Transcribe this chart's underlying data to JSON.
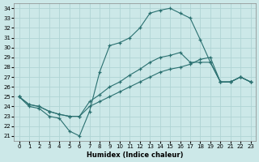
{
  "xlabel": "Humidex (Indice chaleur)",
  "xlim": [
    -0.5,
    23.5
  ],
  "ylim": [
    20.5,
    34.5
  ],
  "xticks": [
    0,
    1,
    2,
    3,
    4,
    5,
    6,
    7,
    8,
    9,
    10,
    11,
    12,
    13,
    14,
    15,
    16,
    17,
    18,
    19,
    20,
    21,
    22,
    23
  ],
  "yticks": [
    21,
    22,
    23,
    24,
    25,
    26,
    27,
    28,
    29,
    30,
    31,
    32,
    33,
    34
  ],
  "line_color": "#2a7070",
  "bg_color": "#cce8e8",
  "grid_color": "#b0d4d4",
  "curve1_x": [
    0,
    1,
    2,
    3,
    4,
    5,
    6,
    7,
    8,
    9,
    10,
    11,
    12,
    13,
    14,
    15,
    16,
    17,
    18,
    19,
    20,
    21,
    22,
    23
  ],
  "curve1_y": [
    25.0,
    24.0,
    23.8,
    23.0,
    22.8,
    21.5,
    21.0,
    23.5,
    27.5,
    30.2,
    30.5,
    31.0,
    32.0,
    33.5,
    33.8,
    34.0,
    33.5,
    33.0,
    30.8,
    28.5,
    26.5,
    26.5,
    27.0,
    26.5
  ],
  "curve2_x": [
    0,
    1,
    2,
    3,
    4,
    5,
    6,
    7,
    8,
    9,
    10,
    11,
    12,
    13,
    14,
    15,
    16,
    17,
    18,
    19,
    20,
    21,
    22,
    23
  ],
  "curve2_y": [
    25.0,
    24.2,
    24.0,
    23.5,
    23.2,
    23.0,
    23.0,
    24.5,
    25.2,
    26.0,
    26.5,
    27.2,
    27.8,
    28.5,
    29.0,
    29.2,
    29.5,
    28.5,
    28.5,
    28.5,
    26.5,
    26.5,
    27.0,
    26.5
  ],
  "curve3_x": [
    0,
    1,
    2,
    3,
    4,
    5,
    6,
    7,
    8,
    9,
    10,
    11,
    12,
    13,
    14,
    15,
    16,
    17,
    18,
    19,
    20,
    21,
    22,
    23
  ],
  "curve3_y": [
    25.0,
    24.2,
    24.0,
    23.5,
    23.2,
    23.0,
    23.0,
    24.0,
    24.5,
    25.0,
    25.5,
    26.0,
    26.5,
    27.0,
    27.5,
    27.8,
    28.0,
    28.3,
    28.8,
    29.0,
    26.5,
    26.5,
    27.0,
    26.5
  ]
}
